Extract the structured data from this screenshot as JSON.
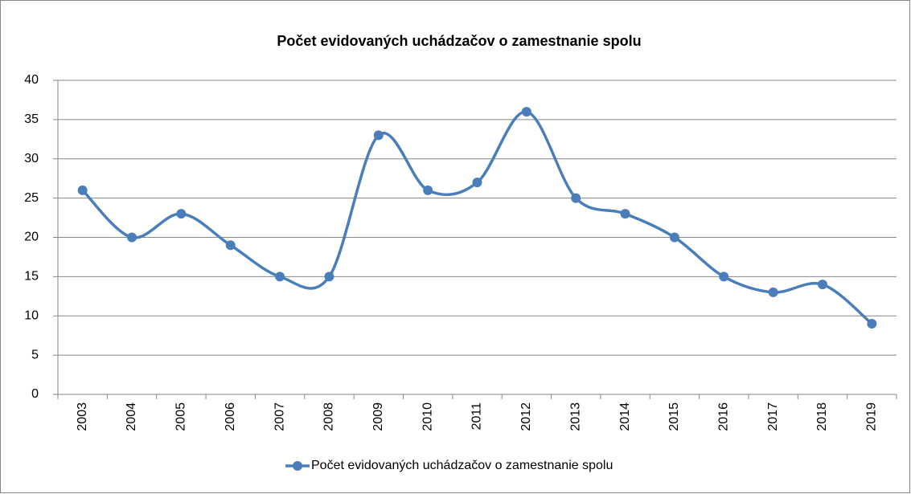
{
  "chart_data": {
    "type": "line",
    "title": "Počet evidovaných uchádzačov o zamestnanie spolu",
    "categories": [
      "2003",
      "2004",
      "2005",
      "2006",
      "2007",
      "2008",
      "2009",
      "2010",
      "2011",
      "2012",
      "2013",
      "2014",
      "2015",
      "2016",
      "2017",
      "2018",
      "2019"
    ],
    "series": [
      {
        "name": "Počet evidovaných uchádzačov o zamestnanie spolu",
        "color": "#4a7ebb",
        "values": [
          26,
          20,
          23,
          19,
          15,
          15,
          33,
          26,
          27,
          36,
          25,
          23,
          20,
          15,
          13,
          14,
          9
        ]
      }
    ],
    "ylim": [
      0,
      40
    ],
    "yticks": [
      0,
      5,
      10,
      15,
      20,
      25,
      30,
      35,
      40
    ],
    "grid": true,
    "smooth": true,
    "legend": "bottom"
  }
}
